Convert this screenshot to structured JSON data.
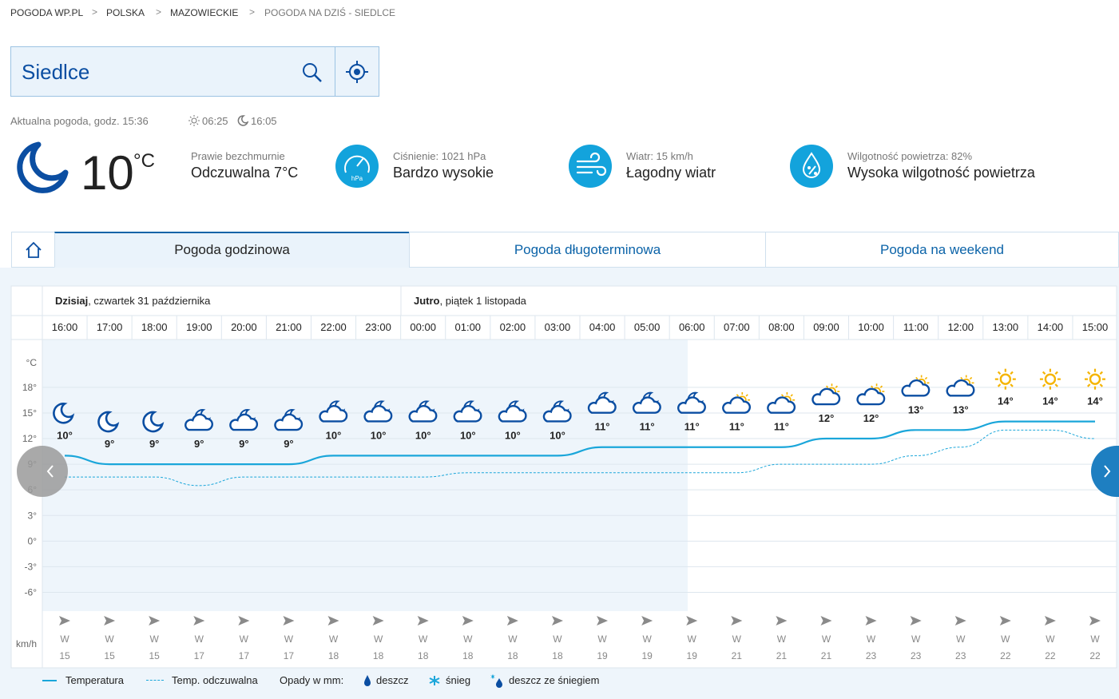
{
  "breadcrumbs": [
    "POGODA WP.PL",
    "POLSKA",
    "MAZOWIECKIE",
    "POGODA NA DZIŚ - SIEDLCE"
  ],
  "search": "Siedlce",
  "current": {
    "time_label": "Aktualna pogoda, godz. 15:36",
    "sunrise": "06:25",
    "sunset": "16:05",
    "temperature": "10",
    "unit": "°C",
    "description": "Prawie bezchmurnie",
    "feels_like": "Odczuwalna 7°C",
    "pressure": {
      "label": "Ciśnienie: 1021 hPa",
      "value": "Bardzo wysokie",
      "icon_label": "hPa"
    },
    "wind": {
      "label": "Wiatr: 15 km/h",
      "value": "Łagodny wiatr"
    },
    "humidity": {
      "label": "Wilgotność powietrza: 82%",
      "value": "Wysoka wilgotność powietrza"
    }
  },
  "tabs": [
    "Pogoda godzinowa",
    "Pogoda długoterminowa",
    "Pogoda na weekend"
  ],
  "chart_data": {
    "type": "line",
    "days": [
      {
        "name": "Dzisiaj",
        "date": ", czwartek 31 października"
      },
      {
        "name": "Jutro",
        "date": ", piątek 1 listopada"
      }
    ],
    "categories": [
      "16:00",
      "17:00",
      "18:00",
      "19:00",
      "20:00",
      "21:00",
      "22:00",
      "23:00",
      "00:00",
      "01:00",
      "02:00",
      "03:00",
      "04:00",
      "05:00",
      "06:00",
      "07:00",
      "08:00",
      "09:00",
      "10:00",
      "11:00",
      "12:00",
      "13:00",
      "14:00",
      "15:00"
    ],
    "series": [
      {
        "name": "Temperatura",
        "color": "#1aa6da",
        "values": [
          10,
          9,
          9,
          9,
          9,
          9,
          10,
          10,
          10,
          10,
          10,
          10,
          11,
          11,
          11,
          11,
          11,
          12,
          12,
          13,
          13,
          14,
          14,
          14
        ],
        "value_labels": [
          "10°",
          "9°",
          "9°",
          "9°",
          "9°",
          "9°",
          "10°",
          "10°",
          "10°",
          "10°",
          "10°",
          "10°",
          "11°",
          "11°",
          "11°",
          "11°",
          "11°",
          "12°",
          "12°",
          "13°",
          "13°",
          "14°",
          "14°",
          "14°"
        ]
      },
      {
        "name": "Temp. odczuwalna",
        "color": "#1aa6da",
        "values": [
          7.5,
          7.5,
          7.5,
          6.5,
          7.5,
          7.5,
          7.5,
          7.5,
          7.5,
          8,
          8,
          8,
          8,
          8,
          8,
          8,
          9,
          9,
          9,
          10,
          11,
          13,
          13,
          12
        ]
      }
    ],
    "y_unit": "°C",
    "ylim": [
      -8.2,
      23.6
    ],
    "yticks": [
      {
        "value": 18,
        "label": "18°"
      },
      {
        "value": 15,
        "label": "15°"
      },
      {
        "value": 12,
        "label": "12°"
      },
      {
        "value": 9,
        "label": "9°"
      },
      {
        "value": 6,
        "label": "6°"
      },
      {
        "value": 3,
        "label": "3°"
      },
      {
        "value": 0,
        "label": "0°"
      },
      {
        "value": -3,
        "label": "-3°"
      },
      {
        "value": -6,
        "label": "-6°"
      }
    ],
    "grid": true,
    "wind": {
      "unit": "km/h",
      "directions": [
        "W",
        "W",
        "W",
        "W",
        "W",
        "W",
        "W",
        "W",
        "W",
        "W",
        "W",
        "W",
        "W",
        "W",
        "W",
        "W",
        "W",
        "W",
        "W",
        "W",
        "W",
        "W",
        "W",
        "W"
      ],
      "values": [
        15,
        15,
        15,
        17,
        17,
        17,
        18,
        18,
        18,
        18,
        18,
        18,
        19,
        19,
        19,
        21,
        21,
        21,
        23,
        23,
        23,
        22,
        22,
        22
      ]
    },
    "precip_legend": {
      "title": "Opady w mm:",
      "items": [
        "deszcz",
        "śnieg",
        "deszcz ze śniegiem"
      ]
    }
  }
}
